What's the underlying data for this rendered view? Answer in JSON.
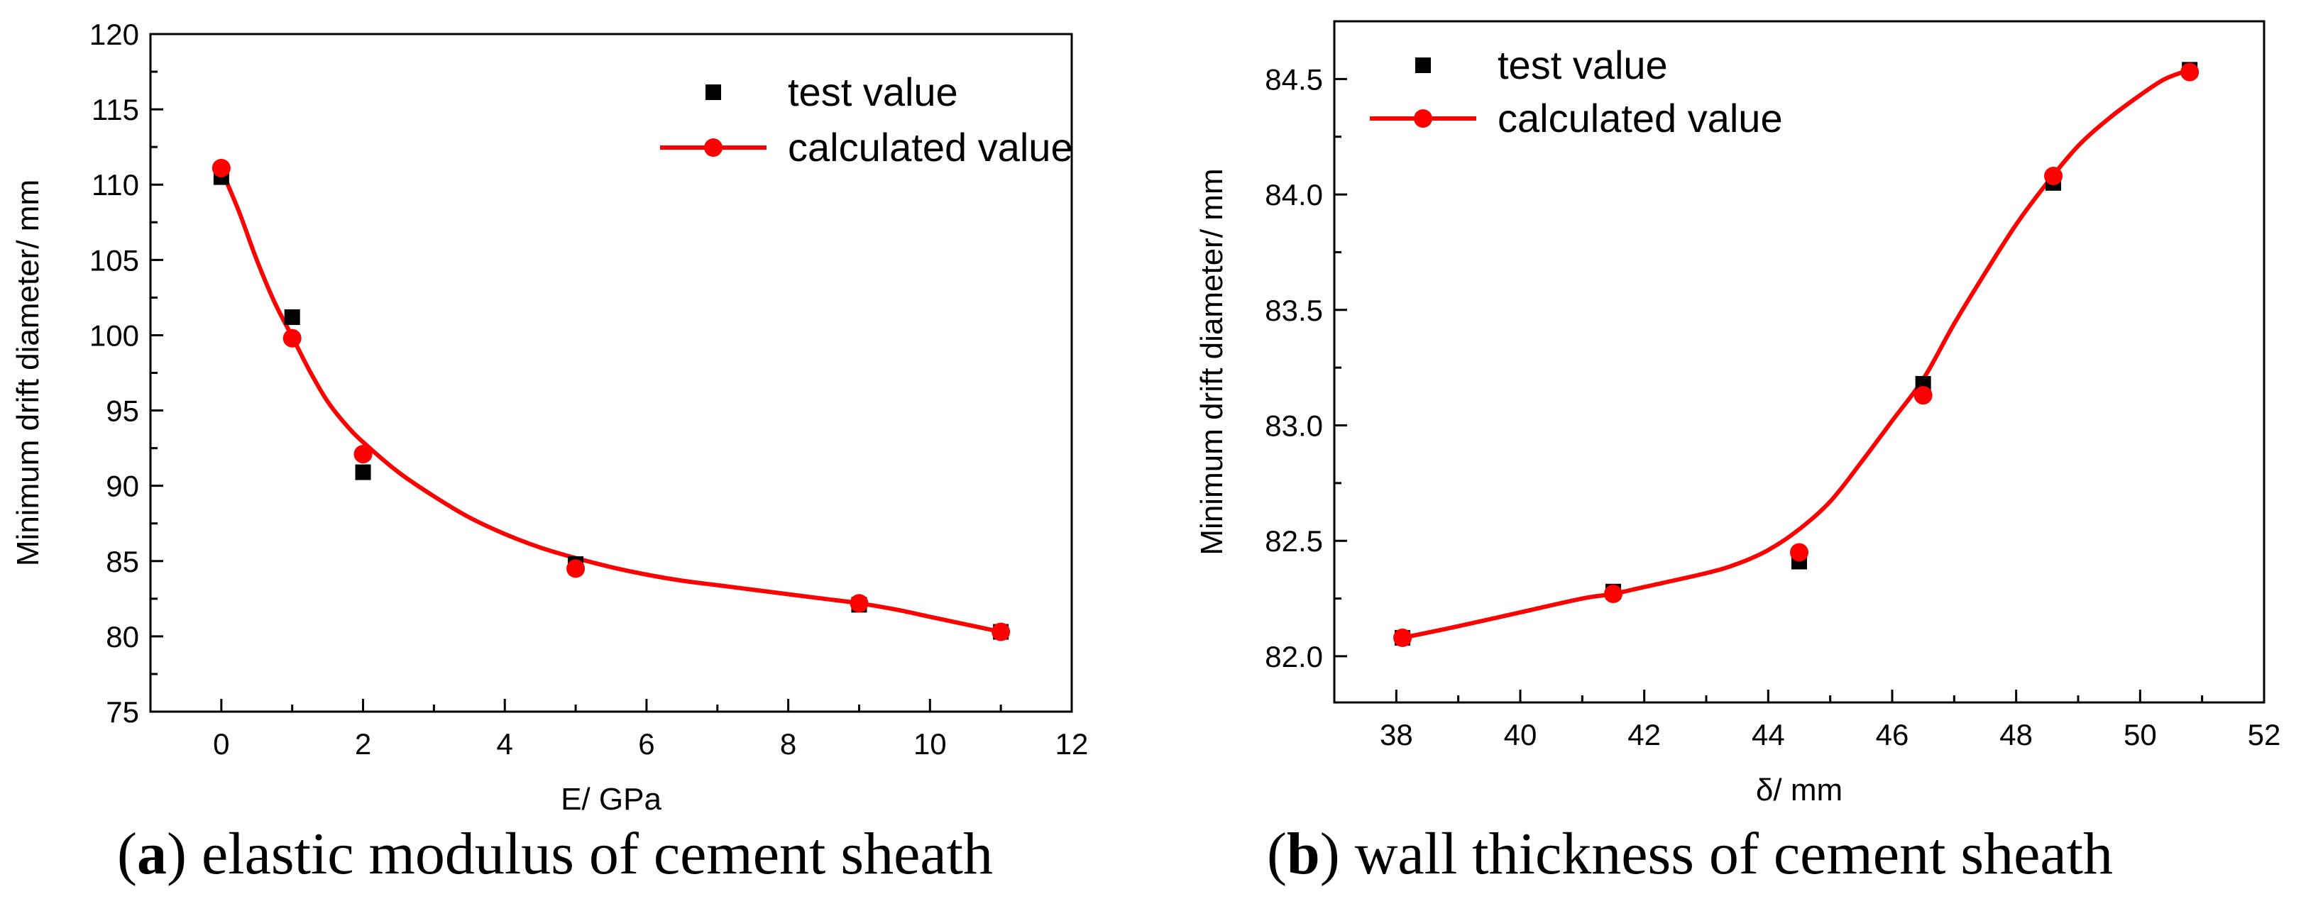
{
  "chart_data": [
    {
      "type": "line",
      "title": "",
      "xlabel": "E/ GPa",
      "ylabel": "Minimum drift diameter/ mm",
      "xlim": [
        -1,
        12
      ],
      "ylim": [
        75,
        120
      ],
      "xticks": [
        0,
        2,
        4,
        6,
        8,
        10,
        12
      ],
      "yticks": [
        75,
        80,
        85,
        90,
        95,
        100,
        105,
        110,
        115,
        120
      ],
      "legend_position": "top-right",
      "series": [
        {
          "name": "test value",
          "marker": "square",
          "color": "#000000",
          "x": [
            0,
            1,
            2,
            5,
            9,
            11
          ],
          "y": [
            110.5,
            101.2,
            90.9,
            84.8,
            82.1,
            80.3
          ]
        },
        {
          "name": "calculated value",
          "marker": "circle",
          "color": "#ff0000",
          "line": true,
          "x": [
            0,
            1,
            2,
            5,
            9,
            11
          ],
          "y": [
            111.1,
            99.8,
            92.1,
            84.5,
            82.2,
            80.3
          ]
        }
      ],
      "curve": {
        "x": [
          0,
          0.25,
          0.5,
          0.75,
          1,
          1.25,
          1.5,
          1.75,
          2,
          2.5,
          3,
          3.5,
          4,
          4.5,
          5,
          5.5,
          6,
          6.5,
          7,
          7.5,
          8,
          8.5,
          9,
          9.5,
          10,
          10.5,
          11
        ],
        "y": [
          111.0,
          108.2,
          105.0,
          102.2,
          99.9,
          97.6,
          95.6,
          94.1,
          92.9,
          90.9,
          89.3,
          87.9,
          86.8,
          85.9,
          85.2,
          84.6,
          84.1,
          83.7,
          83.4,
          83.1,
          82.8,
          82.5,
          82.2,
          81.8,
          81.3,
          80.8,
          80.3
        ]
      },
      "caption": {
        "label": "a",
        "text": " elastic modulus of cement sheath"
      }
    },
    {
      "type": "line",
      "title": "",
      "xlabel": "δ/ mm",
      "ylabel": "Minimum drift diameter/ mm",
      "xlim": [
        37,
        52
      ],
      "ylim": [
        81.8,
        84.75
      ],
      "xticks": [
        38,
        40,
        42,
        44,
        46,
        48,
        50,
        52
      ],
      "yticks": [
        82.0,
        82.5,
        83.0,
        83.5,
        84.0,
        84.5
      ],
      "ytick_format": 1,
      "legend_position": "top-left",
      "series": [
        {
          "name": "test value",
          "marker": "square",
          "color": "#000000",
          "x": [
            38.1,
            41.5,
            44.5,
            46.5,
            48.6,
            50.8
          ],
          "y": [
            82.08,
            82.28,
            82.41,
            83.18,
            84.05,
            84.54
          ]
        },
        {
          "name": "calculated value",
          "marker": "circle",
          "color": "#ff0000",
          "line": true,
          "x": [
            38.1,
            41.5,
            44.5,
            46.5,
            48.6,
            50.8
          ],
          "y": [
            82.08,
            82.27,
            82.45,
            83.13,
            84.08,
            84.53
          ]
        }
      ],
      "curve": {
        "x": [
          38.1,
          39,
          40,
          41,
          41.5,
          42,
          43,
          43.5,
          44,
          44.5,
          45,
          45.5,
          46,
          46.5,
          47,
          47.5,
          48,
          48.5,
          49,
          49.5,
          50,
          50.4,
          50.8
        ],
        "y": [
          82.08,
          82.13,
          82.19,
          82.25,
          82.27,
          82.3,
          82.36,
          82.4,
          82.46,
          82.55,
          82.67,
          82.84,
          83.02,
          83.2,
          83.44,
          83.66,
          83.87,
          84.05,
          84.21,
          84.33,
          84.43,
          84.5,
          84.54
        ]
      },
      "caption": {
        "label": "b",
        "text": " wall thickness of cement sheath"
      }
    }
  ]
}
